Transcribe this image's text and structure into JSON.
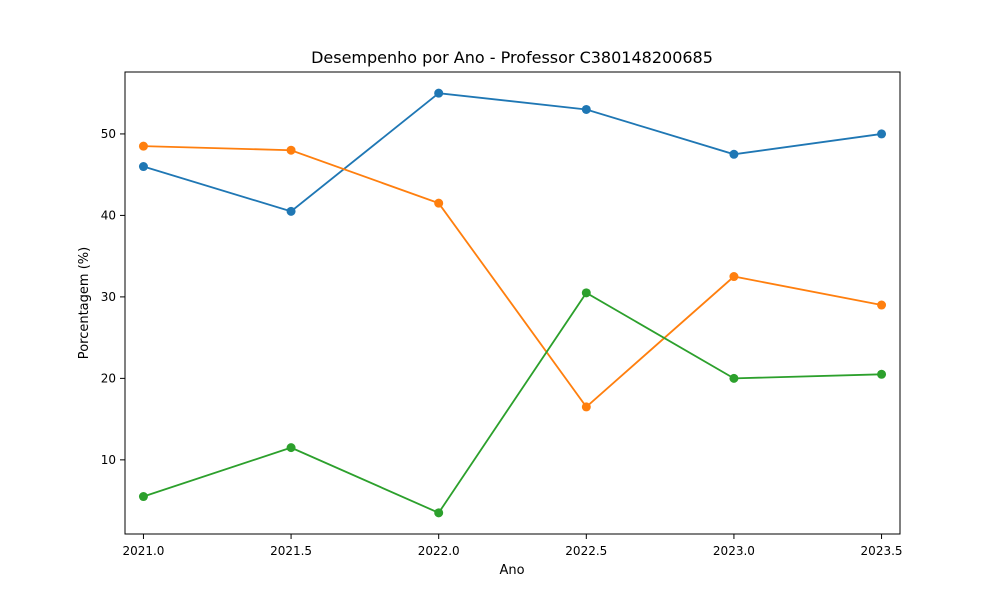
{
  "chart_data": {
    "type": "line",
    "title": "Desempenho por Ano - Professor C380148200685",
    "xlabel": "Ano",
    "ylabel": "Porcentagem (%)",
    "x": [
      2021.0,
      2021.5,
      2022.0,
      2022.5,
      2023.0,
      2023.5
    ],
    "x_ticks": [
      2021.0,
      2021.5,
      2022.0,
      2022.5,
      2023.0,
      2023.5
    ],
    "x_tick_labels": [
      "2021.0",
      "2021.5",
      "2022.0",
      "2022.5",
      "2023.0",
      "2023.5"
    ],
    "y_ticks": [
      10,
      20,
      30,
      40,
      50
    ],
    "y_tick_labels": [
      "10",
      "20",
      "30",
      "40",
      "50"
    ],
    "xlim": [
      2020.9375,
      2023.5625
    ],
    "ylim": [
      0.9,
      57.6
    ],
    "grid": false,
    "legend": "none",
    "series": [
      {
        "color": "#1f77b4",
        "values": [
          46.0,
          40.5,
          55.0,
          53.0,
          47.5,
          50.0
        ]
      },
      {
        "color": "#ff7f0e",
        "values": [
          48.5,
          48.0,
          41.5,
          16.5,
          32.5,
          29.0
        ]
      },
      {
        "color": "#2ca02c",
        "values": [
          5.5,
          11.5,
          3.5,
          30.5,
          20.0,
          20.5
        ]
      }
    ]
  }
}
